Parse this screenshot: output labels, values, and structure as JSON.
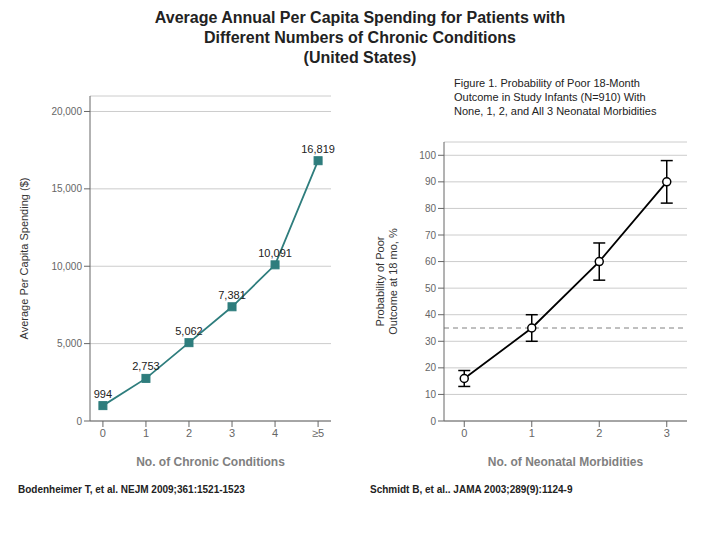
{
  "title": "Average Annual Per Capita Spending for Patients with\nDifferent Numbers of Chronic Conditions\n(United States)",
  "annotations": [
    "Bodenheimer T, et al. NEJM 2009;361:1521-1523",
    "Schmidt B, et al.. JAMA 2003;289(9):1124-9"
  ],
  "chart_data": [
    {
      "type": "line",
      "x": [
        0,
        1,
        2,
        3,
        4,
        5
      ],
      "values": [
        994,
        2753,
        5062,
        7381,
        10091,
        16819
      ],
      "value_labels": [
        "994",
        "2,753",
        "5,062",
        "7,381",
        "10,091",
        "16,819"
      ],
      "data_labels": true,
      "xlim": [
        -0.3,
        5.3
      ],
      "xticks": [
        0,
        1,
        2,
        3,
        4,
        {
          "value": 5,
          "label": "≥5"
        }
      ],
      "ylim": [
        0,
        21000
      ],
      "yticks": [
        0,
        {
          "value": 5000,
          "label": "5,000"
        },
        {
          "value": 10000,
          "label": "10,000"
        },
        {
          "value": 15000,
          "label": "15,000"
        },
        {
          "value": 20000,
          "label": "20,000"
        }
      ],
      "x_label": "No. of Chronic Conditions",
      "y_label": "Average Per Capita Spending ($)",
      "color": "#2E7D7D",
      "marker": "square",
      "grid": true
    },
    {
      "type": "line",
      "title": "Figure 1. Probability of Poor 18-Month\nOutcome in Study Infants (N=910) With\nNone, 1, 2, and All 3 Neonatal Morbidities",
      "x": [
        0,
        1,
        2,
        3
      ],
      "values": [
        16,
        35,
        60,
        90
      ],
      "errors": [
        3,
        5,
        7,
        8
      ],
      "hline": 35,
      "xlim": [
        -0.3,
        3.3
      ],
      "xticks": [
        0,
        1,
        2,
        3
      ],
      "ylim": [
        0,
        105
      ],
      "yticks": [
        0,
        10,
        20,
        30,
        40,
        50,
        60,
        70,
        80,
        90,
        100
      ],
      "x_label": "No. of Neonatal Morbidities",
      "y_label": "Probability of Poor\nOutcome at 18 mo, %",
      "color": "#000000",
      "marker": "circle",
      "grid": true
    }
  ]
}
